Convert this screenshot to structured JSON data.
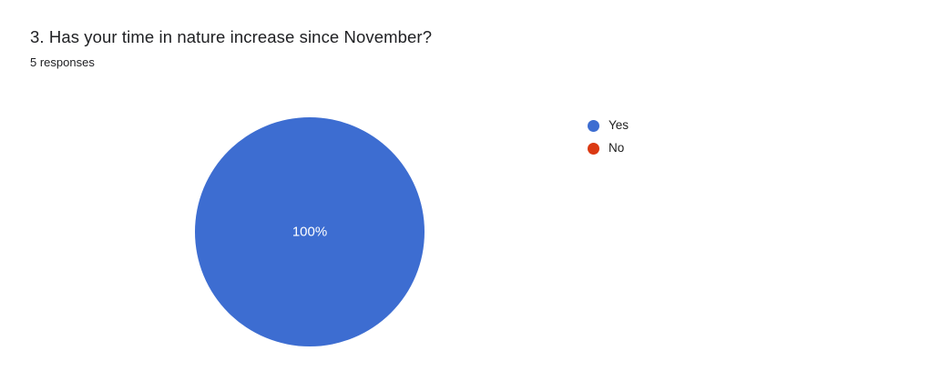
{
  "question": {
    "title": "3. Has your time in nature increase since November?",
    "responses_label": "5 responses"
  },
  "chart_data": {
    "type": "pie",
    "title": "3. Has your time in nature increase since November?",
    "subtitle": "5 responses",
    "total_responses": 5,
    "legend_position": "right",
    "slices": [
      {
        "label": "Yes",
        "value": 5,
        "percent": 100,
        "display_label": "100%",
        "color": "#3D6DD1"
      },
      {
        "label": "No",
        "value": 0,
        "percent": 0,
        "display_label": "",
        "color": "#DB3912"
      }
    ]
  }
}
